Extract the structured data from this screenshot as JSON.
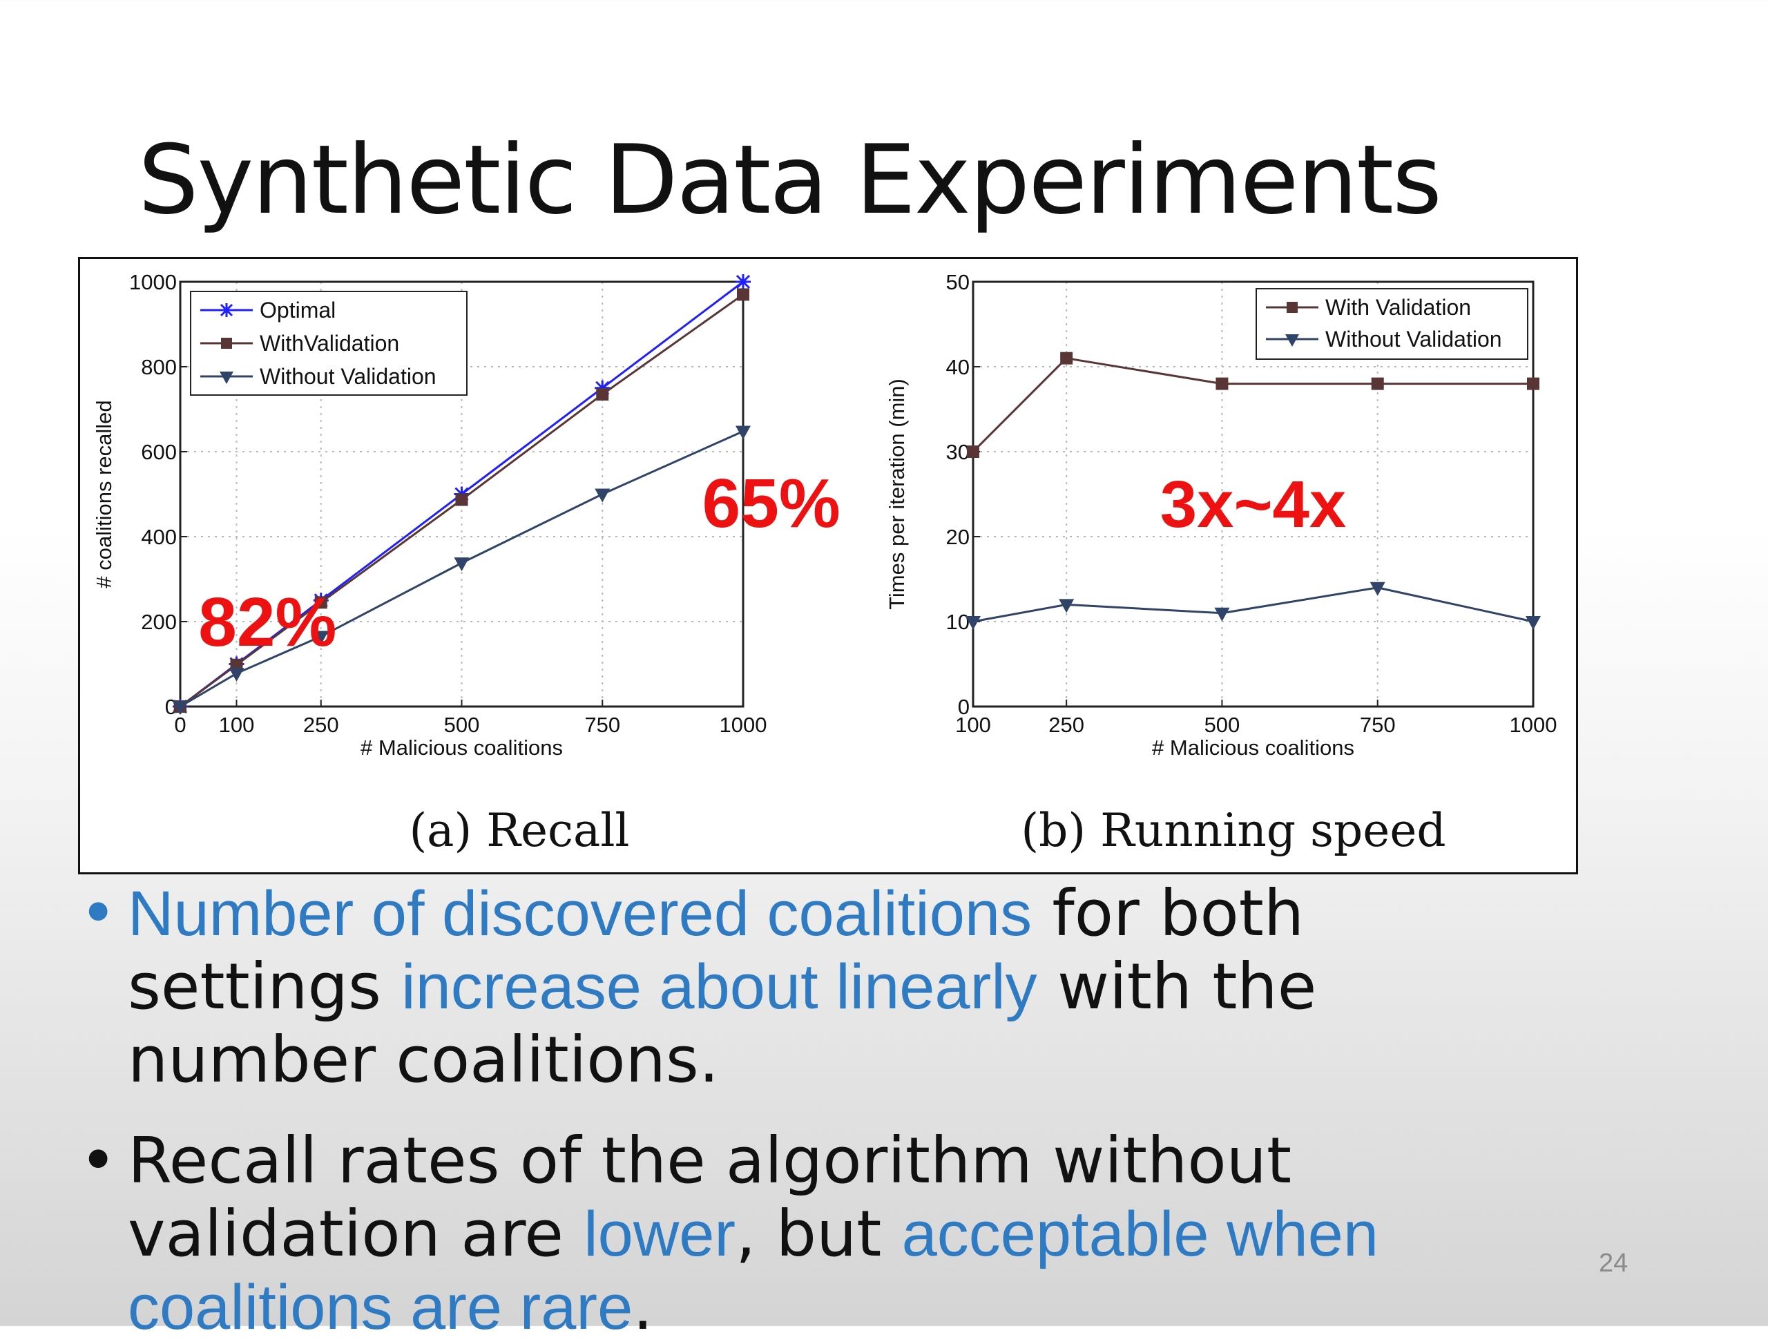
{
  "slide": {
    "title": "Synthetic Data Experiments",
    "page_number": "24"
  },
  "bullets": [
    {
      "segments": [
        {
          "text": "Number of discovered coalitions",
          "highlight": true
        },
        {
          "text": " for both settings ",
          "highlight": false
        },
        {
          "text": "increase about linearly",
          "highlight": true
        },
        {
          "text": " with the number coalitions.",
          "highlight": false
        }
      ]
    },
    {
      "segments": [
        {
          "text": "Recall rates of the algorithm without validation are ",
          "highlight": false
        },
        {
          "text": "lower",
          "highlight": true
        },
        {
          "text": ", but ",
          "highlight": false
        },
        {
          "text": "acceptable when coalitions are rare",
          "highlight": true
        },
        {
          "text": ".",
          "highlight": false
        }
      ]
    }
  ],
  "colors": {
    "optimal": "#1f1fff",
    "with_validation": "#5a3535",
    "without_validation": "#2f4468",
    "annotation": "#ee1111",
    "highlight": "#2e7bc4"
  },
  "chart_data": [
    {
      "type": "line",
      "caption": "(a) Recall",
      "xlabel": "# Malicious coalitions",
      "ylabel": "# coalitions recalled",
      "xlim": [
        0,
        1000
      ],
      "ylim": [
        0,
        1000
      ],
      "xticks": [
        0,
        100,
        250,
        500,
        750,
        1000
      ],
      "yticks": [
        0,
        200,
        400,
        600,
        800,
        1000
      ],
      "grid": true,
      "legend_position": "top-left",
      "x": [
        0,
        100,
        250,
        500,
        750,
        1000
      ],
      "series": [
        {
          "name": "Optimal",
          "marker": "star",
          "color": "#1f1fff",
          "values": [
            0,
            100,
            250,
            500,
            750,
            1000
          ]
        },
        {
          "name": "WithValidation",
          "marker": "square",
          "color": "#5a3535",
          "values": [
            0,
            98,
            245,
            487,
            735,
            970
          ]
        },
        {
          "name": "Without Validation",
          "marker": "triangle-down",
          "color": "#2f4468",
          "values": [
            0,
            78,
            165,
            338,
            500,
            648
          ]
        }
      ],
      "annotations": [
        {
          "text": "82%",
          "x": 155,
          "y": 200
        },
        {
          "text": "65%",
          "x": 1050,
          "y": 480
        }
      ]
    },
    {
      "type": "line",
      "caption": "(b) Running speed",
      "xlabel": "# Malicious coalitions",
      "ylabel": "Times per iteration (min)",
      "xlim": [
        100,
        1000
      ],
      "ylim": [
        0,
        50
      ],
      "xticks": [
        100,
        250,
        500,
        750,
        1000
      ],
      "yticks": [
        0,
        10,
        20,
        30,
        40,
        50
      ],
      "grid": true,
      "legend_position": "top-right",
      "x": [
        100,
        250,
        500,
        750,
        1000
      ],
      "series": [
        {
          "name": "With Validation",
          "marker": "square",
          "color": "#5a3535",
          "values": [
            30,
            41,
            38,
            38,
            38
          ]
        },
        {
          "name": "Without Validation",
          "marker": "triangle-down",
          "color": "#2f4468",
          "values": [
            10,
            12,
            11,
            14,
            10
          ]
        }
      ],
      "annotations": [
        {
          "text": "3x~4x",
          "x": 550,
          "y": 24
        }
      ]
    }
  ]
}
